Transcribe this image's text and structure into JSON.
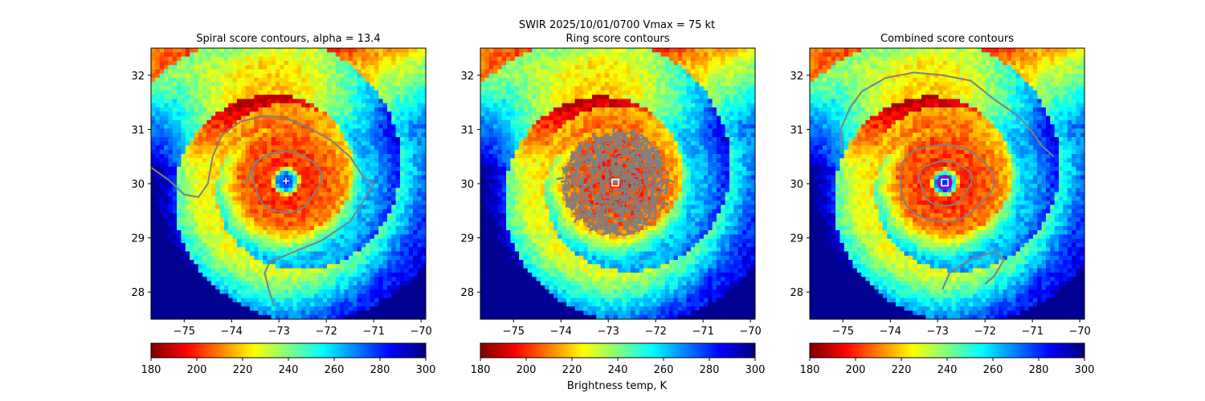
{
  "suptitle_line1": "SWIR  2025/10/01/0700    Vmax = 75 kt",
  "colorbar_label": "Brightness temp, K",
  "colormap": [
    "#800000",
    "#ff0000",
    "#ff8000",
    "#ffff00",
    "#80ff80",
    "#00ffff",
    "#0080ff",
    "#0000ff",
    "#000080"
  ],
  "contour_color": "#808080",
  "chart_data": [
    {
      "type": "heatmap",
      "title": "Spiral score contours, alpha = 13.4",
      "xlim": [
        -75.7,
        -69.9
      ],
      "ylim": [
        27.5,
        32.5
      ],
      "xticks": [
        -75,
        -74,
        -73,
        -72,
        -71,
        -70
      ],
      "yticks": [
        28,
        29,
        30,
        31,
        32
      ],
      "colorbar": {
        "vmin": 180,
        "vmax": 300,
        "ticks": [
          180,
          200,
          220,
          240,
          260,
          280,
          300
        ]
      },
      "center": {
        "lon": -72.85,
        "lat": 30.05
      },
      "center_marker": "plus",
      "eye_temp_k": 275,
      "contours": "spiral"
    },
    {
      "type": "heatmap",
      "title": "Ring score contours",
      "xlim": [
        -75.7,
        -69.9
      ],
      "ylim": [
        27.5,
        32.5
      ],
      "xticks": [
        -75,
        -74,
        -73,
        -72,
        -71,
        -70
      ],
      "yticks": [
        28,
        29,
        30,
        31,
        32
      ],
      "colorbar": {
        "vmin": 180,
        "vmax": 300,
        "ticks": [
          180,
          200,
          220,
          240,
          260,
          280,
          300
        ]
      },
      "center": {
        "lon": -72.85,
        "lat": 30.02
      },
      "center_marker": "square",
      "eye_temp_k": 200,
      "contours": "ring"
    },
    {
      "type": "heatmap",
      "title": "Combined score contours",
      "xlim": [
        -75.7,
        -69.9
      ],
      "ylim": [
        27.5,
        32.5
      ],
      "xticks": [
        -75,
        -74,
        -73,
        -72,
        -71,
        -70
      ],
      "yticks": [
        28,
        29,
        30,
        31,
        32
      ],
      "colorbar": {
        "vmin": 180,
        "vmax": 300,
        "ticks": [
          180,
          200,
          220,
          240,
          260,
          280,
          300
        ]
      },
      "center": {
        "lon": -72.85,
        "lat": 30.02
      },
      "center_marker": "square",
      "eye_temp_k": 275,
      "contours": "combined"
    }
  ]
}
